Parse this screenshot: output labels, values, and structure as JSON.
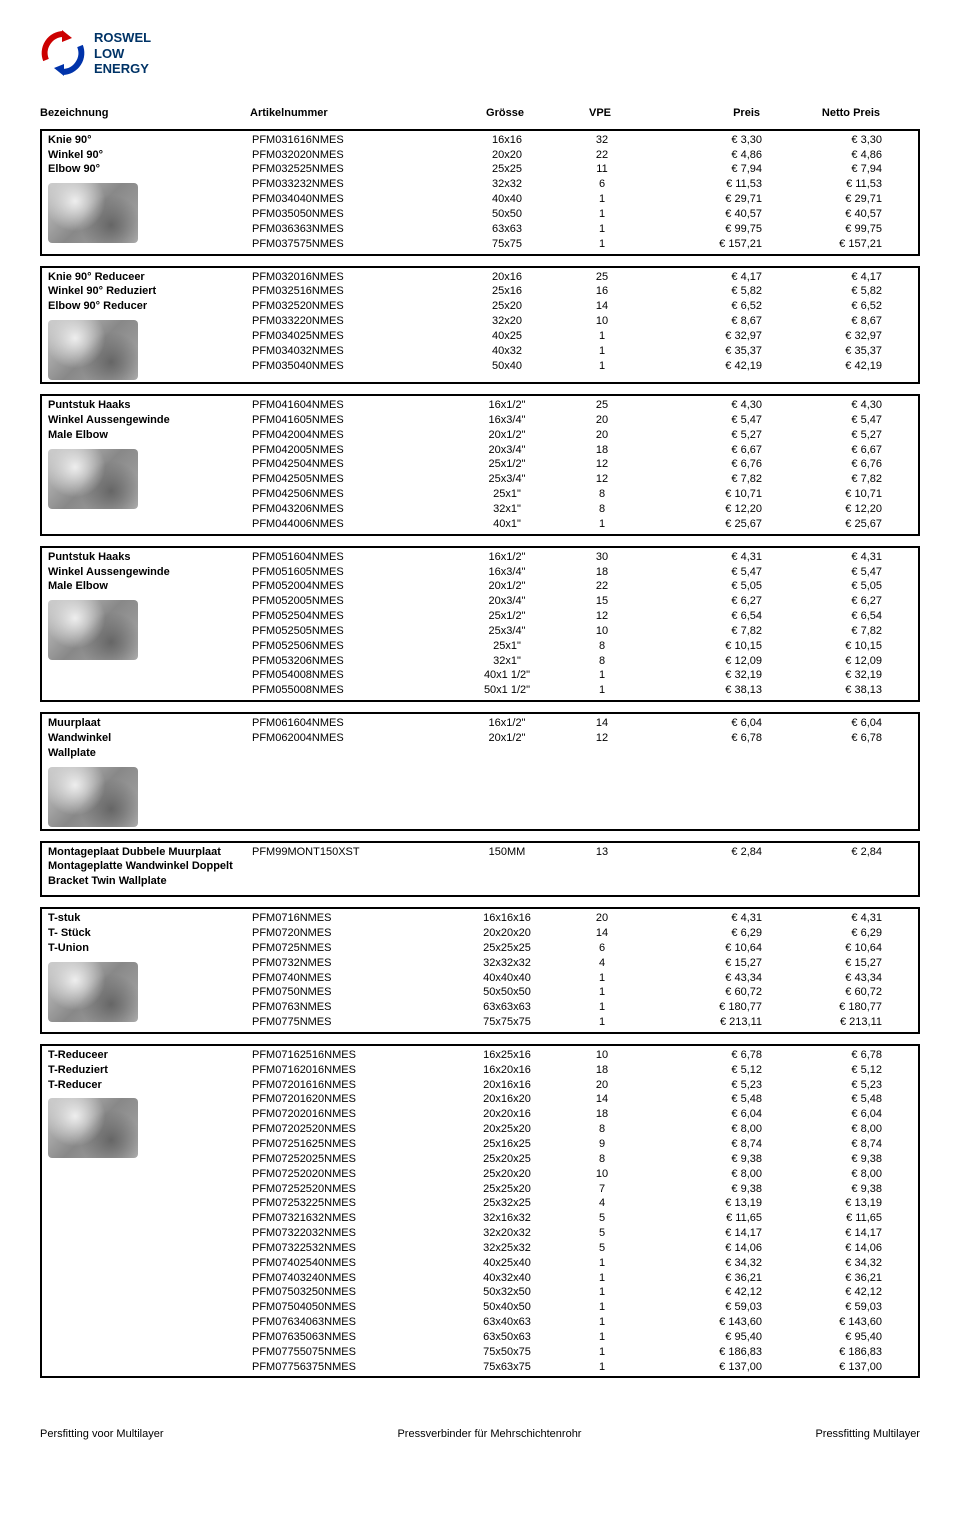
{
  "brand": {
    "line1": "ROSWEL",
    "line2": "LOW",
    "line3": "ENERGY"
  },
  "headers": {
    "name": "Bezeichnung",
    "article": "Artikelnummer",
    "size": "Grösse",
    "vpe": "VPE",
    "price": "Preis",
    "net": "Netto Preis"
  },
  "footer": {
    "left": "Persfitting voor Multilayer",
    "center": "Pressverbinder für Mehrschichtenrohr",
    "right": "Pressfitting Multilayer"
  },
  "sections": [
    {
      "names": [
        "Knie 90°",
        "Winkel 90°",
        "Elbow 90°"
      ],
      "rows": [
        {
          "a": "PFM031616NMES",
          "s": "16x16",
          "v": "32",
          "p": "€ 3,30",
          "n": "€ 3,30"
        },
        {
          "a": "PFM032020NMES",
          "s": "20x20",
          "v": "22",
          "p": "€ 4,86",
          "n": "€ 4,86"
        },
        {
          "a": "PFM032525NMES",
          "s": "25x25",
          "v": "11",
          "p": "€ 7,94",
          "n": "€ 7,94"
        },
        {
          "a": "PFM033232NMES",
          "s": "32x32",
          "v": "6",
          "p": "€ 11,53",
          "n": "€ 11,53"
        },
        {
          "a": "PFM034040NMES",
          "s": "40x40",
          "v": "1",
          "p": "€ 29,71",
          "n": "€ 29,71"
        },
        {
          "a": "PFM035050NMES",
          "s": "50x50",
          "v": "1",
          "p": "€ 40,57",
          "n": "€ 40,57"
        },
        {
          "a": "PFM036363NMES",
          "s": "63x63",
          "v": "1",
          "p": "€ 99,75",
          "n": "€ 99,75"
        },
        {
          "a": "PFM037575NMES",
          "s": "75x75",
          "v": "1",
          "p": "€ 157,21",
          "n": "€ 157,21"
        }
      ]
    },
    {
      "names": [
        "Knie 90° Reduceer",
        "Winkel 90° Reduziert",
        "Elbow 90° Reducer"
      ],
      "rows": [
        {
          "a": "PFM032016NMES",
          "s": "20x16",
          "v": "25",
          "p": "€ 4,17",
          "n": "€ 4,17"
        },
        {
          "a": "PFM032516NMES",
          "s": "25x16",
          "v": "16",
          "p": "€ 5,82",
          "n": "€ 5,82"
        },
        {
          "a": "PFM032520NMES",
          "s": "25x20",
          "v": "14",
          "p": "€ 6,52",
          "n": "€ 6,52"
        },
        {
          "a": "PFM033220NMES",
          "s": "32x20",
          "v": "10",
          "p": "€ 8,67",
          "n": "€ 8,67"
        },
        {
          "a": "PFM034025NMES",
          "s": "40x25",
          "v": "1",
          "p": "€ 32,97",
          "n": "€ 32,97"
        },
        {
          "a": "PFM034032NMES",
          "s": "40x32",
          "v": "1",
          "p": "€ 35,37",
          "n": "€ 35,37"
        },
        {
          "a": "PFM035040NMES",
          "s": "50x40",
          "v": "1",
          "p": "€ 42,19",
          "n": "€ 42,19"
        }
      ]
    },
    {
      "names": [
        "Puntstuk Haaks",
        "Winkel Aussengewinde",
        "Male Elbow"
      ],
      "rows": [
        {
          "a": "PFM041604NMES",
          "s": "16x1/2\"",
          "v": "25",
          "p": "€ 4,30",
          "n": "€ 4,30"
        },
        {
          "a": "PFM041605NMES",
          "s": "16x3/4\"",
          "v": "20",
          "p": "€ 5,47",
          "n": "€ 5,47"
        },
        {
          "a": "PFM042004NMES",
          "s": "20x1/2\"",
          "v": "20",
          "p": "€ 5,27",
          "n": "€ 5,27"
        },
        {
          "a": "PFM042005NMES",
          "s": "20x3/4\"",
          "v": "18",
          "p": "€ 6,67",
          "n": "€ 6,67"
        },
        {
          "a": "PFM042504NMES",
          "s": "25x1/2\"",
          "v": "12",
          "p": "€ 6,76",
          "n": "€ 6,76"
        },
        {
          "a": "PFM042505NMES",
          "s": "25x3/4\"",
          "v": "12",
          "p": "€ 7,82",
          "n": "€ 7,82"
        },
        {
          "a": "PFM042506NMES",
          "s": "25x1\"",
          "v": "8",
          "p": "€ 10,71",
          "n": "€ 10,71"
        },
        {
          "a": "PFM043206NMES",
          "s": "32x1\"",
          "v": "8",
          "p": "€ 12,20",
          "n": "€ 12,20"
        },
        {
          "a": "PFM044006NMES",
          "s": "40x1\"",
          "v": "1",
          "p": "€ 25,67",
          "n": "€ 25,67"
        }
      ]
    },
    {
      "names": [
        "Puntstuk Haaks",
        "Winkel Aussengewinde",
        "Male Elbow"
      ],
      "rows": [
        {
          "a": "PFM051604NMES",
          "s": "16x1/2\"",
          "v": "30",
          "p": "€ 4,31",
          "n": "€ 4,31"
        },
        {
          "a": "PFM051605NMES",
          "s": "16x3/4\"",
          "v": "18",
          "p": "€ 5,47",
          "n": "€ 5,47"
        },
        {
          "a": "PFM052004NMES",
          "s": "20x1/2\"",
          "v": "22",
          "p": "€ 5,05",
          "n": "€ 5,05"
        },
        {
          "a": "PFM052005NMES",
          "s": "20x3/4\"",
          "v": "15",
          "p": "€ 6,27",
          "n": "€ 6,27"
        },
        {
          "a": "PFM052504NMES",
          "s": "25x1/2\"",
          "v": "12",
          "p": "€ 6,54",
          "n": "€ 6,54"
        },
        {
          "a": "PFM052505NMES",
          "s": "25x3/4\"",
          "v": "10",
          "p": "€ 7,82",
          "n": "€ 7,82"
        },
        {
          "a": "PFM052506NMES",
          "s": "25x1\"",
          "v": "8",
          "p": "€ 10,15",
          "n": "€ 10,15"
        },
        {
          "a": "PFM053206NMES",
          "s": "32x1\"",
          "v": "8",
          "p": "€ 12,09",
          "n": "€ 12,09"
        },
        {
          "a": "PFM054008NMES",
          "s": "40x1 1/2\"",
          "v": "1",
          "p": "€ 32,19",
          "n": "€ 32,19"
        },
        {
          "a": "PFM055008NMES",
          "s": "50x1 1/2\"",
          "v": "1",
          "p": "€ 38,13",
          "n": "€ 38,13"
        }
      ]
    },
    {
      "names": [
        "Muurplaat",
        "Wandwinkel",
        "Wallplate"
      ],
      "rows": [
        {
          "a": "PFM061604NMES",
          "s": "16x1/2\"",
          "v": "14",
          "p": "€ 6,04",
          "n": "€ 6,04"
        },
        {
          "a": "PFM062004NMES",
          "s": "20x1/2\"",
          "v": "12",
          "p": "€ 6,78",
          "n": "€ 6,78"
        }
      ]
    },
    {
      "names": [
        "Montageplaat Dubbele Muurplaat",
        "Montageplatte Wandwinkel Doppelt",
        "Bracket Twin Wallplate"
      ],
      "noimage": true,
      "rows": [
        {
          "a": "PFM99MONT150XST",
          "s": "150MM",
          "v": "13",
          "p": "€ 2,84",
          "n": "€ 2,84"
        }
      ]
    },
    {
      "names": [
        "T-stuk",
        "T- Stück",
        "T-Union"
      ],
      "rows": [
        {
          "a": "PFM0716NMES",
          "s": "16x16x16",
          "v": "20",
          "p": "€ 4,31",
          "n": "€ 4,31"
        },
        {
          "a": "PFM0720NMES",
          "s": "20x20x20",
          "v": "14",
          "p": "€ 6,29",
          "n": "€ 6,29"
        },
        {
          "a": "PFM0725NMES",
          "s": "25x25x25",
          "v": "6",
          "p": "€ 10,64",
          "n": "€ 10,64"
        },
        {
          "a": "PFM0732NMES",
          "s": "32x32x32",
          "v": "4",
          "p": "€ 15,27",
          "n": "€ 15,27"
        },
        {
          "a": "PFM0740NMES",
          "s": "40x40x40",
          "v": "1",
          "p": "€ 43,34",
          "n": "€ 43,34"
        },
        {
          "a": "PFM0750NMES",
          "s": "50x50x50",
          "v": "1",
          "p": "€ 60,72",
          "n": "€ 60,72"
        },
        {
          "a": "PFM0763NMES",
          "s": "63x63x63",
          "v": "1",
          "p": "€ 180,77",
          "n": "€ 180,77"
        },
        {
          "a": "PFM0775NMES",
          "s": "75x75x75",
          "v": "1",
          "p": "€ 213,11",
          "n": "€ 213,11"
        }
      ]
    },
    {
      "names": [
        "T-Reduceer",
        "T-Reduziert",
        "T-Reducer"
      ],
      "rows": [
        {
          "a": "PFM07162516NMES",
          "s": "16x25x16",
          "v": "10",
          "p": "€ 6,78",
          "n": "€ 6,78"
        },
        {
          "a": "PFM07162016NMES",
          "s": "16x20x16",
          "v": "18",
          "p": "€ 5,12",
          "n": "€ 5,12"
        },
        {
          "a": "PFM07201616NMES",
          "s": "20x16x16",
          "v": "20",
          "p": "€ 5,23",
          "n": "€ 5,23"
        },
        {
          "a": "PFM07201620NMES",
          "s": "20x16x20",
          "v": "14",
          "p": "€ 5,48",
          "n": "€ 5,48"
        },
        {
          "a": "PFM07202016NMES",
          "s": "20x20x16",
          "v": "18",
          "p": "€ 6,04",
          "n": "€ 6,04"
        },
        {
          "a": "PFM07202520NMES",
          "s": "20x25x20",
          "v": "8",
          "p": "€ 8,00",
          "n": "€ 8,00"
        },
        {
          "a": "PFM07251625NMES",
          "s": "25x16x25",
          "v": "9",
          "p": "€ 8,74",
          "n": "€ 8,74"
        },
        {
          "a": "PFM07252025NMES",
          "s": "25x20x25",
          "v": "8",
          "p": "€ 9,38",
          "n": "€ 9,38"
        },
        {
          "a": "PFM07252020NMES",
          "s": "25x20x20",
          "v": "10",
          "p": "€ 8,00",
          "n": "€ 8,00"
        },
        {
          "a": "PFM07252520NMES",
          "s": "25x25x20",
          "v": "7",
          "p": "€ 9,38",
          "n": "€ 9,38"
        },
        {
          "a": "PFM07253225NMES",
          "s": "25x32x25",
          "v": "4",
          "p": "€ 13,19",
          "n": "€ 13,19"
        },
        {
          "a": "PFM07321632NMES",
          "s": "32x16x32",
          "v": "5",
          "p": "€ 11,65",
          "n": "€ 11,65"
        },
        {
          "a": "PFM07322032NMES",
          "s": "32x20x32",
          "v": "5",
          "p": "€ 14,17",
          "n": "€ 14,17"
        },
        {
          "a": "PFM07322532NMES",
          "s": "32x25x32",
          "v": "5",
          "p": "€ 14,06",
          "n": "€ 14,06"
        },
        {
          "a": "PFM07402540NMES",
          "s": "40x25x40",
          "v": "1",
          "p": "€ 34,32",
          "n": "€ 34,32"
        },
        {
          "a": "PFM07403240NMES",
          "s": "40x32x40",
          "v": "1",
          "p": "€ 36,21",
          "n": "€ 36,21"
        },
        {
          "a": "PFM07503250NMES",
          "s": "50x32x50",
          "v": "1",
          "p": "€ 42,12",
          "n": "€ 42,12"
        },
        {
          "a": "PFM07504050NMES",
          "s": "50x40x50",
          "v": "1",
          "p": "€ 59,03",
          "n": "€ 59,03"
        },
        {
          "a": "PFM07634063NMES",
          "s": "63x40x63",
          "v": "1",
          "p": "€ 143,60",
          "n": "€ 143,60"
        },
        {
          "a": "PFM07635063NMES",
          "s": "63x50x63",
          "v": "1",
          "p": "€ 95,40",
          "n": "€ 95,40"
        },
        {
          "a": "PFM07755075NMES",
          "s": "75x50x75",
          "v": "1",
          "p": "€ 186,83",
          "n": "€ 186,83"
        },
        {
          "a": "PFM07756375NMES",
          "s": "75x63x75",
          "v": "1",
          "p": "€ 137,00",
          "n": "€ 137,00"
        }
      ]
    }
  ]
}
